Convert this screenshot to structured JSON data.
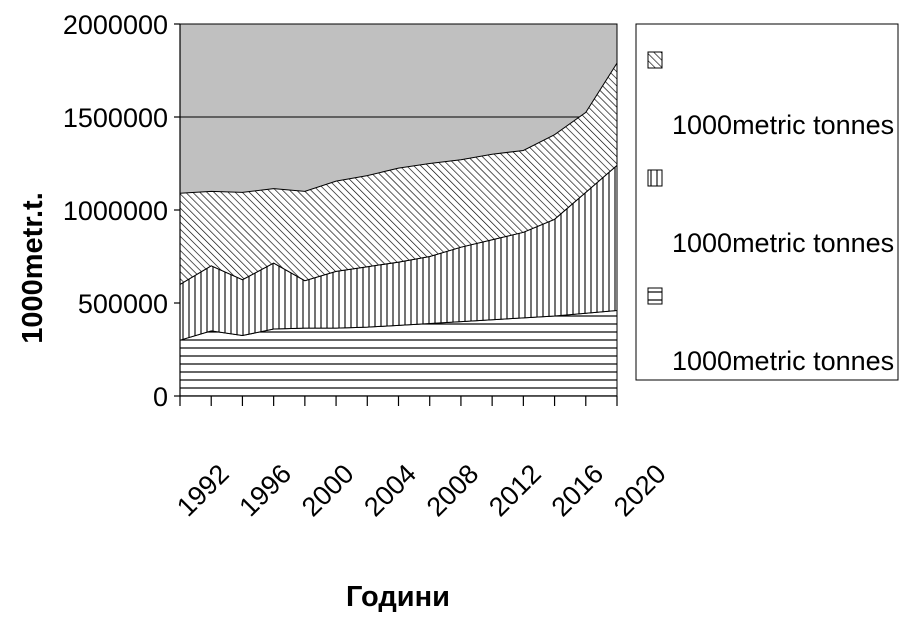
{
  "chart_data": {
    "type": "area",
    "stacked": true,
    "xlabel": "Години",
    "ylabel": "1000metr.t.",
    "ylim": [
      0,
      2000000
    ],
    "yticks": [
      0,
      500000,
      1000000,
      1500000,
      2000000
    ],
    "x": [
      1992,
      1994,
      1996,
      1998,
      2000,
      2002,
      2004,
      2006,
      2008,
      2010,
      2012,
      2014,
      2016,
      2018,
      2020
    ],
    "xtick_labels": [
      "1992",
      "1996",
      "2000",
      "2004",
      "2008",
      "2012",
      "2016",
      "2020"
    ],
    "grid": "horizontal major",
    "legend_position": "right",
    "plot_background": "#c0c0c0",
    "series": [
      {
        "name": "1000metric tonnes",
        "pattern": "horizontal-lines",
        "values": [
          300000,
          350000,
          325000,
          360000,
          365000,
          365000,
          370000,
          380000,
          390000,
          400000,
          410000,
          420000,
          430000,
          445000,
          460000
        ]
      },
      {
        "name": "1000metric tonnes",
        "pattern": "vertical-lines",
        "values": [
          300000,
          350000,
          300000,
          355000,
          255000,
          305000,
          325000,
          340000,
          360000,
          400000,
          430000,
          460000,
          520000,
          650000,
          780000
        ]
      },
      {
        "name": "1000metric tonnes",
        "pattern": "diagonal-lines",
        "values": [
          490000,
          400000,
          470000,
          400000,
          480000,
          485000,
          490000,
          505000,
          500000,
          470000,
          460000,
          440000,
          455000,
          430000,
          550000
        ]
      }
    ]
  }
}
